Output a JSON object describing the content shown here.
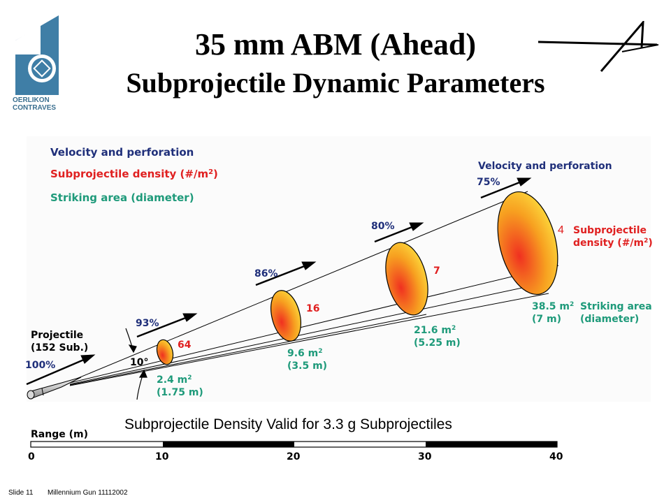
{
  "title": {
    "line1": "35 mm ABM (Ahead)",
    "line2": "Subprojectile Dynamic Parameters"
  },
  "logo_left": {
    "line1": "OERLIKON",
    "line2": "CONTRAVES"
  },
  "legend": {
    "velocity": "Velocity and perforation",
    "density": "Subprojectile density (#/m",
    "density_sup": "2",
    "density_end": ")",
    "area": "Striking area (diameter)"
  },
  "projectile": {
    "line1": "Projectile",
    "line2": "(152 Sub.)",
    "velocity": "100%",
    "angle": "10°"
  },
  "stations": [
    {
      "velocity": "93%",
      "density": "64",
      "area": "2.4 m",
      "area_sup": "2",
      "diameter": "(1.75 m)"
    },
    {
      "velocity": "86%",
      "density": "16",
      "area": "9.6 m",
      "area_sup": "2",
      "diameter": "(3.5 m)"
    },
    {
      "velocity": "80%",
      "density": "7",
      "area": "21.6 m",
      "area_sup": "2",
      "diameter": "(5.25 m)"
    },
    {
      "velocity": "75%",
      "density": "4",
      "area": "38.5 m",
      "area_sup": "2",
      "diameter": "(7 m)"
    }
  ],
  "right_labels": {
    "velocity": "Velocity and perforation",
    "density_line1": "Subprojectile",
    "density_line2": "density (#/m",
    "density_sup": "2",
    "density_end": ")",
    "area_line1": "Striking area",
    "area_line2": "(diameter)"
  },
  "note": "Subprojectile Density Valid for 3.3 g Subprojectiles",
  "range": {
    "label": "Range (m)",
    "ticks": [
      "0",
      "10",
      "20",
      "30",
      "40"
    ]
  },
  "footer": {
    "slide": "Slide 11",
    "doc": "Millennium Gun 11112002"
  },
  "colors": {
    "velocity": "#1f2f7a",
    "density": "#e02020",
    "area": "#1e9a7a"
  }
}
